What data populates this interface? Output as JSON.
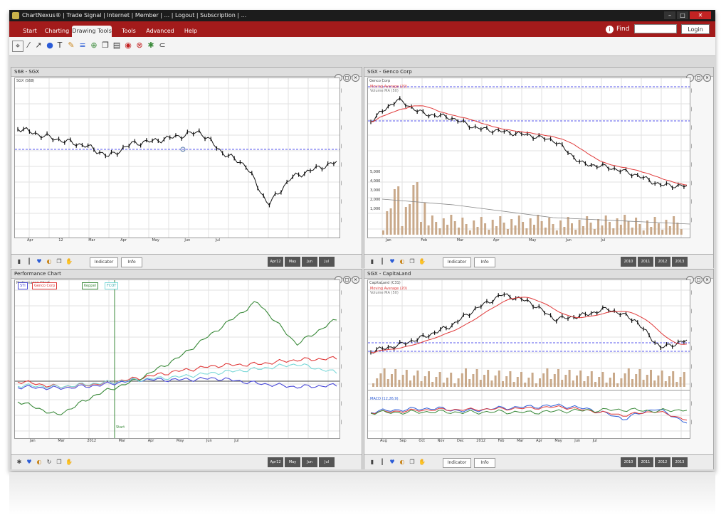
{
  "window": {
    "title": "ChartNexus® | Trade Signal | Internet | Member | ... | Logout | Subscription | ..."
  },
  "menu": {
    "tabs": [
      "Start",
      "Charting",
      "Drawing Tools",
      "Tools",
      "Advanced",
      "Help"
    ],
    "active_tab": "Drawing Tools",
    "find_label": "Find",
    "find_placeholder": "",
    "login_label": "Login"
  },
  "colors": {
    "menu": "#a31b1b",
    "price": "#111111",
    "ma": "#e03a3a",
    "volume_bar": "#c9a98a",
    "grid": "#dcdcdc",
    "ref_line": "#5555ee"
  },
  "toolbar": {
    "icons": [
      "pointer-icon",
      "line-icon",
      "ray-icon",
      "circle-icon",
      "text-icon",
      "pencil-icon",
      "fibonacci-icon",
      "zoom-icon",
      "copy-icon",
      "select-icon",
      "record-icon",
      "delete-icon",
      "gear-icon",
      "magnet-icon"
    ]
  },
  "panes": [
    {
      "title": "S68 - SGX",
      "info": "SGX (S68)",
      "dates": [
        "Apr 12",
        "Mar",
        "Apr",
        "May",
        "Jun",
        "Jul"
      ],
      "buttons": [
        "Indicator",
        "Info"
      ],
      "periods": [
        "Apr12",
        "May",
        "Jun",
        "Jul"
      ]
    },
    {
      "title": "SGX - Genco Corp",
      "info": "Genco Corp",
      "indicators": [
        "Moving Average (20)",
        "Volume MA (50)"
      ],
      "volume_ticks": [
        "5,000",
        "4,000",
        "3,000",
        "2,000",
        "1,000"
      ],
      "dates": [
        "Jan",
        "Feb",
        "Mar",
        "Apr",
        "May",
        "Jun",
        "Jul"
      ],
      "buttons": [
        "Indicator",
        "Info"
      ],
      "periods": [
        "2010",
        "2011",
        "2012",
        "2013"
      ]
    },
    {
      "title": "Performance Chart",
      "info": "Performance Chart",
      "series": [
        "STI",
        "Genco Corp",
        "Keppel",
        "FCOT"
      ],
      "series_colors": [
        "#4a4ad8",
        "#e03a3a",
        "#3a8a3a",
        "#7bd8d8"
      ],
      "marker_label": "Start",
      "dates": [
        "Jan",
        "Mar",
        "2012",
        "Mar",
        "Apr",
        "May",
        "Jun",
        "Jul"
      ],
      "periods": [
        "Apr12",
        "May",
        "Jun",
        "Jul"
      ]
    },
    {
      "title": "SGX - CapitaLand",
      "info": "CapitaLand (C31)",
      "indicators": [
        "Moving Average (20)",
        "Volume MA (50)"
      ],
      "macd_label": "MACD (12,26,9)",
      "dates": [
        "Aug",
        "Sep",
        "Oct",
        "Nov",
        "Dec",
        "2012",
        "Feb",
        "Mar",
        "Apr",
        "May",
        "Jun",
        "Jul"
      ],
      "buttons": [
        "Indicator",
        "Info"
      ],
      "periods": [
        "2010",
        "2011",
        "2012",
        "2013"
      ]
    }
  ]
}
